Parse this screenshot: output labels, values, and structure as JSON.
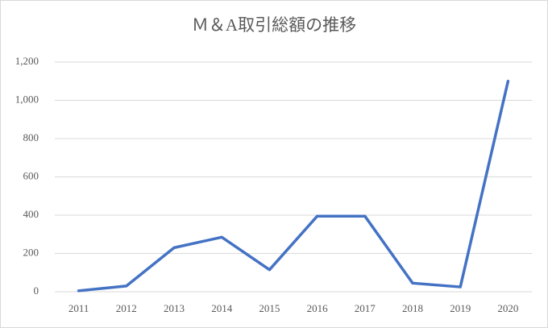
{
  "chart_data": {
    "type": "line",
    "title": "Ｍ＆A取引総額の推移",
    "categories": [
      "2011",
      "2012",
      "2013",
      "2014",
      "2015",
      "2016",
      "2017",
      "2018",
      "2019",
      "2020"
    ],
    "values": [
      5,
      30,
      230,
      285,
      115,
      395,
      395,
      45,
      25,
      1100
    ],
    "color": "#4472c4",
    "ylim": [
      0,
      1200
    ],
    "yticks": [
      0,
      200,
      400,
      600,
      800,
      {
        "value": 1000,
        "label": "1,000"
      },
      {
        "value": 1200,
        "label": "1,200"
      }
    ],
    "grid": true
  }
}
